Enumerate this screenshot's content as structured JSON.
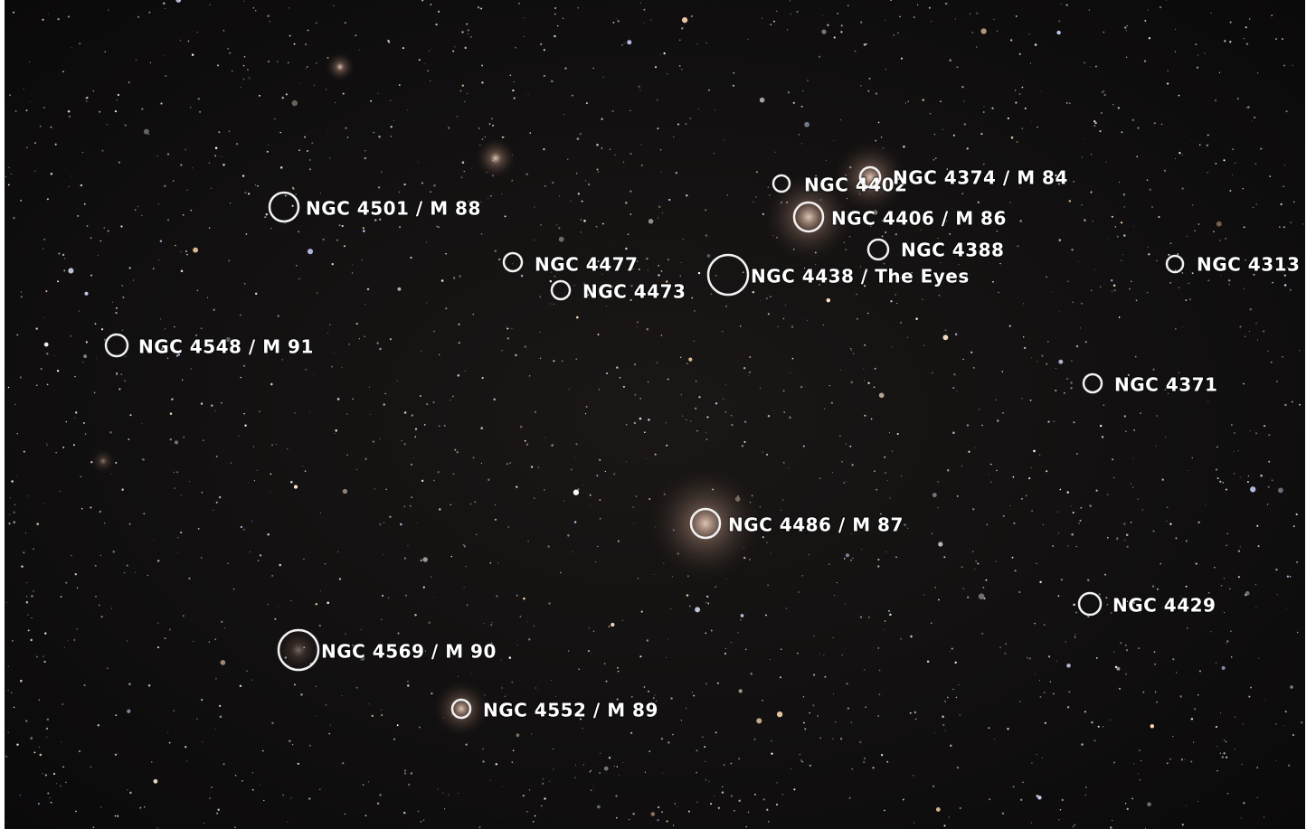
{
  "labels": [
    "NGC 4501 / M 88",
    "NGC 4402",
    "NGC 4374 / M 84",
    "NGC 4406 / M 86",
    "NGC 4388",
    "NGC 4477",
    "NGC 4473",
    "NGC 4438 / The Eyes",
    "NGC 4313",
    "NGC 4548 / M 91",
    "NGC 4371",
    "NGC 4486 / M 87",
    "NGC 4429",
    "NGC 4569 / M 90",
    "NGC 4552 / M 89"
  ]
}
